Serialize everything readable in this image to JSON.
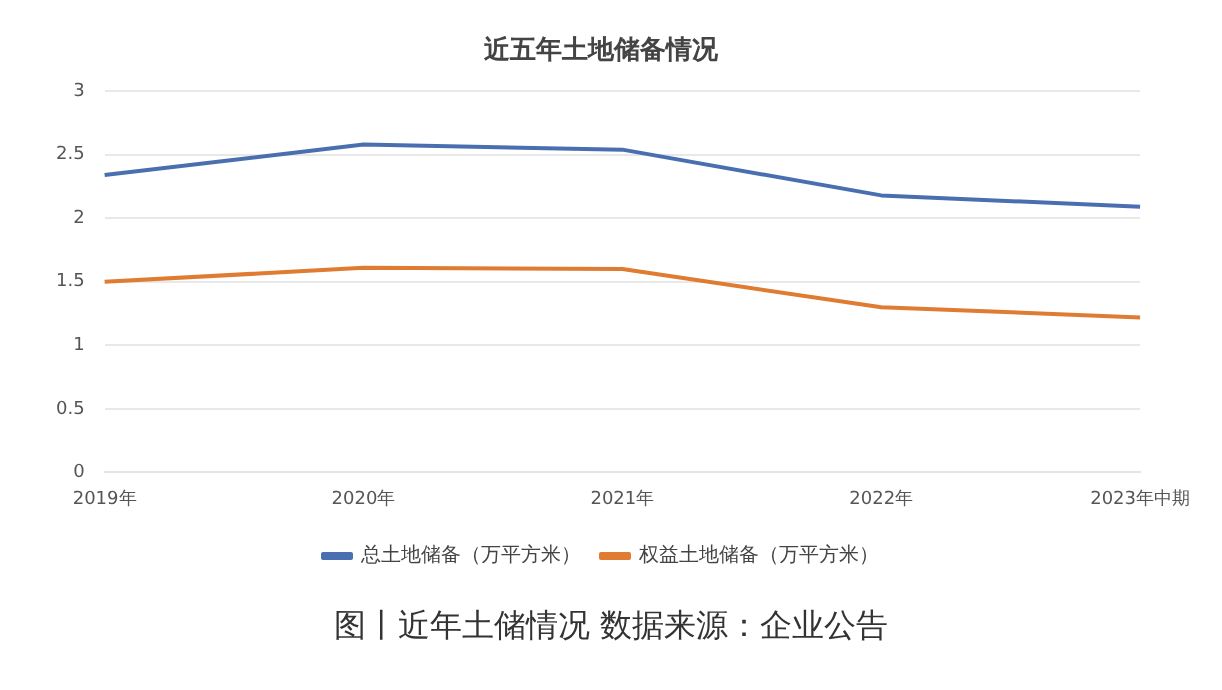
{
  "chart_data": {
    "type": "line",
    "title": "近五年土地储备情况",
    "categories": [
      "2019年",
      "2020年",
      "2021年",
      "2022年",
      "2023年中期"
    ],
    "series": [
      {
        "name": "总土地储备（万平方米）",
        "color": "#4a6fb0",
        "values": [
          2.34,
          2.58,
          2.54,
          2.18,
          2.09
        ]
      },
      {
        "name": "权益土地储备（万平方米）",
        "color": "#e07b32",
        "values": [
          1.5,
          1.61,
          1.6,
          1.3,
          1.22
        ]
      }
    ],
    "ylim": [
      0,
      3
    ],
    "yticks": [
      0,
      0.5,
      1,
      1.5,
      2,
      2.5,
      3
    ],
    "grid": "y",
    "legend": "bottom",
    "marker": "none",
    "line_style": "solid",
    "annotations": [
      "图丨近年土储情况 数据来源：企业公告"
    ]
  }
}
